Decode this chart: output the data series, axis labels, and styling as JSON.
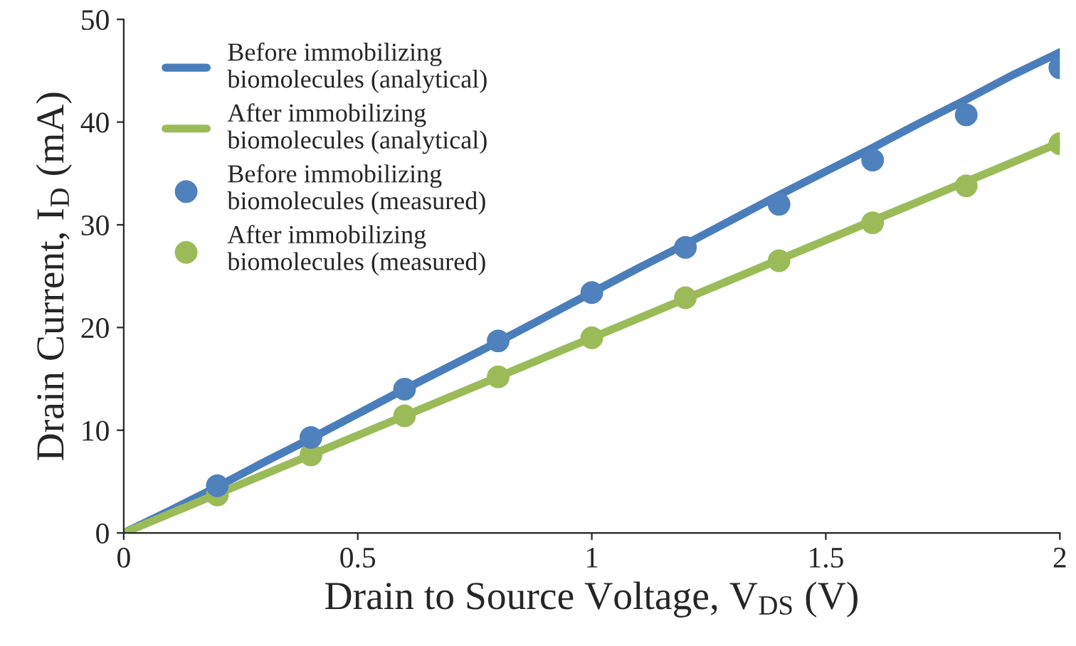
{
  "chart_data": {
    "type": "line",
    "xlabel": "Drain to Source Voltage, V$_{DS}$ (V)",
    "ylabel": "Drain Current, I$_{D}$ (mA)",
    "xlim": [
      0,
      2
    ],
    "ylim": [
      0,
      50
    ],
    "xticks": [
      0,
      0.5,
      1,
      1.5,
      2
    ],
    "yticks": [
      0,
      10,
      20,
      30,
      40,
      50
    ],
    "grid": false,
    "legend": "top left",
    "series": [
      {
        "name": "Before immobilizing\nbiomolecules (analytical)",
        "color": "#4a7ebb",
        "x": [
          0,
          0.1,
          0.2,
          0.3,
          0.4,
          0.5,
          0.6,
          0.7,
          0.8,
          0.9,
          1.0,
          1.1,
          1.2,
          1.3,
          1.4,
          1.5,
          1.6,
          1.7,
          1.8,
          1.9,
          2.0
        ],
        "values": [
          0,
          2.2,
          4.5,
          6.9,
          9.2,
          11.6,
          14.0,
          16.3,
          18.6,
          21.0,
          23.4,
          25.8,
          28.1,
          30.5,
          32.9,
          35.2,
          37.5,
          39.9,
          42.2,
          44.6,
          46.8
        ]
      },
      {
        "name": "After immobilizing\nbiomolecules (analytical)",
        "color": "#9bbb59",
        "x": [
          0,
          0.5,
          1.0,
          1.5,
          2.0
        ],
        "values": [
          0,
          9.5,
          19.0,
          28.5,
          38.0
        ]
      },
      {
        "name": "Before immobilizing\nbiomolecules (measured)",
        "type": "scatter",
        "marker": "circle",
        "color": "#4f81bd",
        "x": [
          0.2,
          0.4,
          0.6,
          0.8,
          1.0,
          1.2,
          1.4,
          1.6,
          1.8,
          2.0
        ],
        "values": [
          4.6,
          9.3,
          14.0,
          18.7,
          23.4,
          27.8,
          32.0,
          36.3,
          40.7,
          45.3
        ]
      },
      {
        "name": "After immobilizing\nbiomolecules (measured)",
        "type": "scatter",
        "marker": "circle",
        "color": "#9bbb59",
        "x": [
          0.2,
          0.4,
          0.6,
          0.8,
          1.0,
          1.2,
          1.4,
          1.6,
          1.8,
          2.0
        ],
        "values": [
          3.7,
          7.6,
          11.4,
          15.2,
          19.0,
          22.9,
          26.5,
          30.2,
          33.8,
          37.9
        ]
      }
    ]
  }
}
